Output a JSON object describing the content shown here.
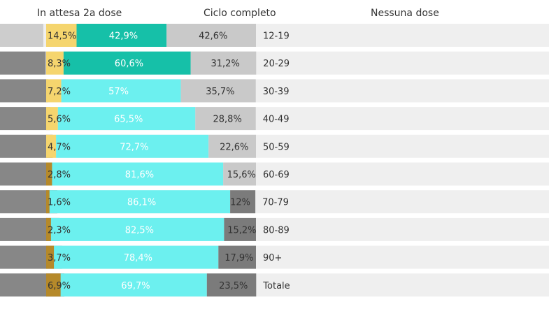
{
  "chart_data": {
    "type": "bar",
    "stacked": true,
    "headers": [
      "In attesa 2a dose",
      "Ciclo completo",
      "Nessuna dose"
    ],
    "categories": [
      "12-19",
      "20-29",
      "30-39",
      "40-49",
      "50-59",
      "60-69",
      "70-79",
      "80-89",
      "90+",
      "Totale"
    ],
    "series": [
      {
        "name": "In attesa 2a dose",
        "values": [
          14.5,
          8.3,
          7.2,
          5.6,
          4.7,
          2.8,
          1.6,
          2.3,
          3.7,
          6.9
        ]
      },
      {
        "name": "Ciclo completo",
        "values": [
          42.9,
          60.6,
          57.0,
          65.5,
          72.7,
          81.6,
          86.1,
          82.5,
          78.4,
          69.7
        ]
      },
      {
        "name": "Nessuna dose",
        "values": [
          42.6,
          31.2,
          35.7,
          28.8,
          22.6,
          15.6,
          12.0,
          15.2,
          17.9,
          23.5
        ]
      }
    ],
    "value_labels": [
      [
        "14,5%",
        "42,9%",
        "42,6%"
      ],
      [
        "8,3%",
        "60,6%",
        "31,2%"
      ],
      [
        "7,2%",
        "57%",
        "35,7%"
      ],
      [
        "5,6%",
        "65,5%",
        "28,8%"
      ],
      [
        "4,7%",
        "72,7%",
        "22,6%"
      ],
      [
        "2,8%",
        "81,6%",
        "15,6%"
      ],
      [
        "1,6%",
        "86,1%",
        "12%"
      ],
      [
        "2,3%",
        "82,5%",
        "15,2%"
      ],
      [
        "3,7%",
        "78,4%",
        "17,9%"
      ],
      [
        "6,9%",
        "69,7%",
        "23,5%"
      ]
    ],
    "colors": {
      "in_attesa": "#f5d56e",
      "in_attesa_dark": "#b5892a",
      "ciclo_completo": "#6cf0ef",
      "ciclo_completo_dark": "#16c0a8",
      "nessuna_dose": "#c9c9c9",
      "nessuna_dose_dark": "#7b7b7b",
      "track": "#efefef",
      "text_dark": "#333333",
      "text_light": "#ffffff"
    }
  }
}
